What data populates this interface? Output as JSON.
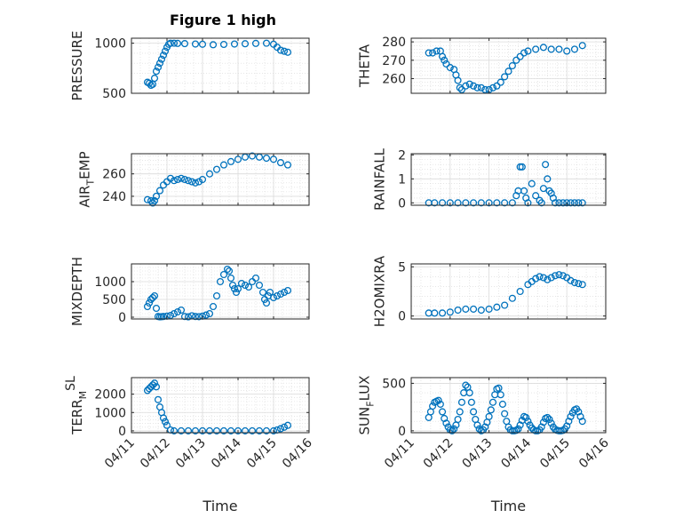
{
  "figure": {
    "title": "Figure 1 high"
  },
  "chart_data": [
    {
      "type": "scatter",
      "title": "Figure 1 high",
      "ylabel_parts": [
        {
          "t": "PRESSURE"
        }
      ],
      "xlabel": "",
      "yticks": [
        500,
        1000
      ],
      "ylim": [
        500,
        1050
      ],
      "x_ticks": [
        "04/11",
        "04/12",
        "04/13",
        "04/14",
        "04/15",
        "04/16"
      ],
      "show_x_tick_labels": false,
      "grid": true,
      "color": "#0072BD",
      "series": [
        {
          "x": [
            11.45,
            11.5,
            11.55,
            11.6,
            11.65,
            11.7,
            11.75,
            11.8,
            11.85,
            11.9,
            11.95,
            12.0,
            12.05,
            12.1,
            12.2,
            12.3,
            12.5,
            12.8,
            13.0,
            13.3,
            13.6,
            13.9,
            14.2,
            14.5,
            14.8,
            15.0,
            15.1,
            15.2,
            15.3,
            15.4
          ],
          "y": [
            610,
            600,
            580,
            590,
            650,
            720,
            760,
            800,
            840,
            880,
            920,
            960,
            990,
            1000,
            1000,
            998,
            996,
            992,
            990,
            985,
            988,
            992,
            995,
            998,
            1000,
            990,
            960,
            930,
            920,
            910
          ]
        }
      ]
    },
    {
      "type": "scatter",
      "ylabel_parts": [
        {
          "t": "THETA"
        }
      ],
      "xlabel": "",
      "yticks": [
        260,
        270,
        280
      ],
      "ylim": [
        252,
        282
      ],
      "x_ticks": [
        "04/11",
        "04/12",
        "04/13",
        "04/14",
        "04/15",
        "04/16"
      ],
      "show_x_tick_labels": false,
      "grid": true,
      "color": "#0072BD",
      "series": [
        {
          "x": [
            11.45,
            11.55,
            11.65,
            11.75,
            11.8,
            11.85,
            11.9,
            12.0,
            12.1,
            12.15,
            12.2,
            12.25,
            12.3,
            12.4,
            12.5,
            12.6,
            12.7,
            12.8,
            12.9,
            13.0,
            13.1,
            13.2,
            13.3,
            13.4,
            13.5,
            13.6,
            13.7,
            13.8,
            13.9,
            14.0,
            14.2,
            14.4,
            14.6,
            14.8,
            15.0,
            15.2,
            15.4
          ],
          "y": [
            274,
            274,
            275,
            275,
            272,
            270,
            268,
            266,
            265,
            262,
            259,
            255,
            254,
            256,
            257,
            256,
            255,
            255,
            254,
            254,
            255,
            256,
            258,
            261,
            264,
            267,
            270,
            272,
            274,
            275,
            276,
            277,
            276,
            276,
            275,
            276,
            278
          ]
        }
      ]
    },
    {
      "type": "scatter",
      "ylabel_parts": [
        {
          "t": "AIR"
        },
        {
          "t": "T",
          "sub": true
        },
        {
          "t": "EMP"
        }
      ],
      "xlabel": "",
      "yticks": [
        240,
        260
      ],
      "ylim": [
        232,
        278
      ],
      "x_ticks": [
        "04/11",
        "04/12",
        "04/13",
        "04/14",
        "04/15",
        "04/16"
      ],
      "show_x_tick_labels": false,
      "grid": true,
      "color": "#0072BD",
      "series": [
        {
          "x": [
            11.45,
            11.55,
            11.6,
            11.65,
            11.7,
            11.8,
            11.9,
            12.0,
            12.1,
            12.2,
            12.3,
            12.4,
            12.5,
            12.6,
            12.7,
            12.8,
            12.9,
            13.0,
            13.2,
            13.4,
            13.6,
            13.8,
            14.0,
            14.2,
            14.4,
            14.6,
            14.8,
            15.0,
            15.2,
            15.4
          ],
          "y": [
            237,
            236,
            234,
            236,
            240,
            245,
            250,
            253,
            256,
            254,
            255,
            256,
            255,
            254,
            253,
            252,
            253,
            255,
            260,
            264,
            268,
            271,
            273,
            275,
            276,
            275,
            274,
            273,
            270,
            268
          ]
        }
      ]
    },
    {
      "type": "scatter",
      "ylabel_parts": [
        {
          "t": "RAINFALL"
        }
      ],
      "xlabel": "",
      "yticks": [
        0,
        1,
        2
      ],
      "ylim": [
        -0.1,
        2.05
      ],
      "x_ticks": [
        "04/11",
        "04/12",
        "04/13",
        "04/14",
        "04/15",
        "04/16"
      ],
      "show_x_tick_labels": false,
      "grid": true,
      "color": "#0072BD",
      "series": [
        {
          "x": [
            11.45,
            11.6,
            11.8,
            12.0,
            12.2,
            12.4,
            12.6,
            12.8,
            13.0,
            13.2,
            13.4,
            13.6,
            13.7,
            13.75,
            13.8,
            13.85,
            13.9,
            13.95,
            14.0,
            14.1,
            14.2,
            14.3,
            14.35,
            14.4,
            14.45,
            14.5,
            14.55,
            14.6,
            14.65,
            14.7,
            14.8,
            14.9,
            15.0,
            15.1,
            15.2,
            15.3,
            15.4
          ],
          "y": [
            0,
            0,
            0,
            0,
            0,
            0,
            0,
            0,
            0,
            0,
            0,
            0,
            0.3,
            0.5,
            1.5,
            1.5,
            0.5,
            0.2,
            0,
            0.8,
            0.3,
            0.1,
            0,
            0.6,
            1.6,
            1.0,
            0.5,
            0.4,
            0.2,
            0,
            0,
            0,
            0,
            0,
            0,
            0,
            0
          ]
        }
      ]
    },
    {
      "type": "scatter",
      "ylabel_parts": [
        {
          "t": "MIXDEPTH"
        }
      ],
      "xlabel": "",
      "yticks": [
        0,
        500,
        1000
      ],
      "ylim": [
        -50,
        1500
      ],
      "x_ticks": [
        "04/11",
        "04/12",
        "04/13",
        "04/14",
        "04/15",
        "04/16"
      ],
      "show_x_tick_labels": false,
      "grid": true,
      "color": "#0072BD",
      "series": [
        {
          "x": [
            11.45,
            11.5,
            11.55,
            11.6,
            11.65,
            11.7,
            11.75,
            11.8,
            11.85,
            11.9,
            12.0,
            12.1,
            12.2,
            12.3,
            12.4,
            12.5,
            12.6,
            12.7,
            12.8,
            12.9,
            13.0,
            13.1,
            13.2,
            13.3,
            13.4,
            13.5,
            13.6,
            13.7,
            13.75,
            13.8,
            13.85,
            13.9,
            13.95,
            14.0,
            14.1,
            14.2,
            14.3,
            14.4,
            14.5,
            14.6,
            14.7,
            14.75,
            14.8,
            14.85,
            14.9,
            15.0,
            15.1,
            15.2,
            15.3,
            15.4
          ],
          "y": [
            300,
            400,
            500,
            550,
            600,
            250,
            20,
            10,
            15,
            20,
            30,
            50,
            100,
            150,
            200,
            20,
            10,
            40,
            20,
            15,
            30,
            60,
            100,
            300,
            600,
            1000,
            1200,
            1350,
            1300,
            1100,
            900,
            800,
            700,
            800,
            950,
            900,
            850,
            1000,
            1100,
            900,
            700,
            500,
            400,
            600,
            700,
            550,
            600,
            650,
            700,
            750
          ]
        }
      ]
    },
    {
      "type": "scatter",
      "ylabel_parts": [
        {
          "t": "H2OMIXRA"
        }
      ],
      "xlabel": "",
      "yticks": [
        0,
        5
      ],
      "ylim": [
        -0.3,
        5.3
      ],
      "x_ticks": [
        "04/11",
        "04/12",
        "04/13",
        "04/14",
        "04/15",
        "04/16"
      ],
      "show_x_tick_labels": false,
      "grid": true,
      "color": "#0072BD",
      "series": [
        {
          "x": [
            11.45,
            11.6,
            11.8,
            12.0,
            12.2,
            12.4,
            12.6,
            12.8,
            13.0,
            13.2,
            13.4,
            13.6,
            13.8,
            14.0,
            14.1,
            14.2,
            14.3,
            14.4,
            14.5,
            14.6,
            14.7,
            14.8,
            14.9,
            15.0,
            15.1,
            15.2,
            15.3,
            15.4
          ],
          "y": [
            0.3,
            0.3,
            0.3,
            0.4,
            0.6,
            0.7,
            0.7,
            0.6,
            0.7,
            0.9,
            1.1,
            1.8,
            2.5,
            3.2,
            3.5,
            3.8,
            4.0,
            3.9,
            3.7,
            3.9,
            4.1,
            4.2,
            4.1,
            3.9,
            3.6,
            3.4,
            3.3,
            3.2
          ]
        }
      ]
    },
    {
      "type": "scatter",
      "ylabel_parts": [
        {
          "t": "TERR"
        },
        {
          "t": "M",
          "sub": true
        },
        {
          "t": "SL",
          "sup": true
        }
      ],
      "xlabel": "Time",
      "yticks": [
        0,
        1000,
        2000
      ],
      "ylim": [
        -100,
        2900
      ],
      "x_ticks": [
        "04/11",
        "04/12",
        "04/13",
        "04/14",
        "04/15",
        "04/16"
      ],
      "show_x_tick_labels": true,
      "grid": true,
      "color": "#0072BD",
      "series": [
        {
          "x": [
            11.45,
            11.5,
            11.55,
            11.6,
            11.65,
            11.7,
            11.75,
            11.8,
            11.85,
            11.9,
            11.95,
            12.0,
            12.1,
            12.2,
            12.4,
            12.6,
            12.8,
            13.0,
            13.2,
            13.4,
            13.6,
            13.8,
            14.0,
            14.2,
            14.4,
            14.6,
            14.8,
            15.0,
            15.1,
            15.2,
            15.3,
            15.4
          ],
          "y": [
            2200,
            2300,
            2400,
            2500,
            2600,
            2400,
            1700,
            1300,
            1000,
            700,
            500,
            300,
            50,
            0,
            0,
            0,
            0,
            0,
            0,
            0,
            0,
            0,
            0,
            0,
            0,
            0,
            0,
            0,
            50,
            120,
            200,
            300
          ]
        }
      ]
    },
    {
      "type": "scatter",
      "ylabel_parts": [
        {
          "t": "SUN"
        },
        {
          "t": "F",
          "sub": true
        },
        {
          "t": "LUX"
        }
      ],
      "xlabel": "Time",
      "yticks": [
        0,
        500
      ],
      "ylim": [
        -20,
        560
      ],
      "x_ticks": [
        "04/11",
        "04/12",
        "04/13",
        "04/14",
        "04/15",
        "04/16"
      ],
      "show_x_tick_labels": true,
      "grid": true,
      "color": "#0072BD",
      "series": [
        {
          "x": [
            11.45,
            11.5,
            11.55,
            11.6,
            11.65,
            11.7,
            11.75,
            11.8,
            11.85,
            11.9,
            11.95,
            12.0,
            12.05,
            12.1,
            12.15,
            12.2,
            12.25,
            12.3,
            12.35,
            12.4,
            12.45,
            12.5,
            12.55,
            12.6,
            12.65,
            12.7,
            12.75,
            12.8,
            12.85,
            12.9,
            12.95,
            13.0,
            13.05,
            13.1,
            13.15,
            13.2,
            13.25,
            13.3,
            13.35,
            13.4,
            13.45,
            13.5,
            13.55,
            13.6,
            13.65,
            13.7,
            13.75,
            13.8,
            13.85,
            13.9,
            13.95,
            14.0,
            14.05,
            14.1,
            14.15,
            14.2,
            14.25,
            14.3,
            14.35,
            14.4,
            14.45,
            14.5,
            14.55,
            14.6,
            14.65,
            14.7,
            14.75,
            14.8,
            14.85,
            14.9,
            14.95,
            15.0,
            15.05,
            15.1,
            15.15,
            15.2,
            15.25,
            15.3,
            15.35,
            15.4
          ],
          "y": [
            140,
            200,
            260,
            300,
            310,
            320,
            280,
            200,
            130,
            80,
            40,
            10,
            0,
            20,
            60,
            120,
            200,
            300,
            400,
            480,
            460,
            400,
            300,
            200,
            120,
            60,
            20,
            0,
            10,
            40,
            90,
            150,
            220,
            300,
            380,
            440,
            450,
            380,
            280,
            180,
            100,
            40,
            10,
            0,
            0,
            5,
            20,
            60,
            110,
            150,
            140,
            100,
            60,
            30,
            10,
            0,
            0,
            10,
            40,
            90,
            130,
            140,
            120,
            80,
            40,
            15,
            5,
            0,
            0,
            5,
            20,
            50,
            100,
            150,
            190,
            220,
            230,
            200,
            150,
            100
          ]
        }
      ]
    }
  ]
}
